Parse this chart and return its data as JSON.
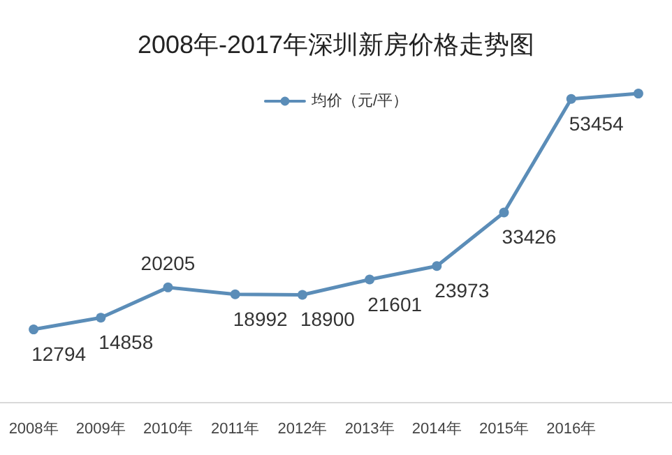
{
  "chart_data": {
    "type": "line",
    "title": "2008年-2017年深圳新房价格走势图",
    "categories": [
      "2008年",
      "2009年",
      "2010年",
      "2011年",
      "2012年",
      "2013年",
      "2014年",
      "2015年",
      "2016年",
      null
    ],
    "series": [
      {
        "name": "均价（元/平）",
        "color": "#5b8db8",
        "values": [
          12794,
          14858,
          20205,
          18992,
          18900,
          21601,
          23973,
          33426,
          53454,
          54400
        ],
        "value_labels": [
          "12794",
          "14858",
          "20205",
          "18992",
          "18900",
          "21601",
          "23973",
          "33426",
          "53454",
          null
        ]
      }
    ],
    "legend": "top",
    "marker": "circle",
    "grid": false
  }
}
